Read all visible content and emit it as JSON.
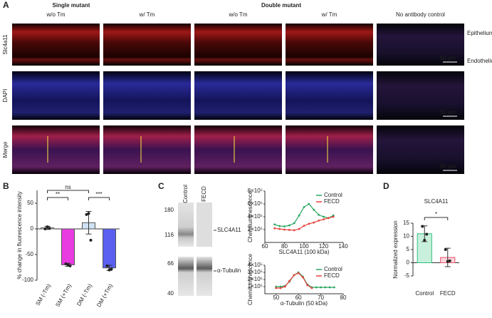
{
  "panel_a": {
    "label": "A",
    "groups": [
      "Single mutant",
      "Double mutant"
    ],
    "columns": [
      "w/o Tm",
      "w/ Tm",
      "w/o Tm",
      "w/ Tm",
      "No antibody control"
    ],
    "rows": [
      "Slc4a11",
      "DAPI",
      "Merge"
    ],
    "layers": [
      "Epithelium",
      "Endothelium"
    ],
    "scale_bar": "50 µm"
  },
  "panel_labels": [
    "B",
    "C",
    "D"
  ],
  "panel_c_blot": {
    "lanes": [
      "Control",
      "FECD"
    ],
    "markers": [
      "180",
      "116",
      "66",
      "40"
    ],
    "bands": [
      "SLC4A11",
      "α-Tubulin"
    ]
  },
  "chart_data": [
    {
      "type": "bar",
      "ylabel": "% change in fluorescence intensity",
      "categories": [
        "SM (-Tm)",
        "SM (+Tm)",
        "DM (-Tm)",
        "DM (+Tm)"
      ],
      "values": [
        2,
        -70,
        12,
        -76
      ],
      "errors": [
        3,
        3,
        22,
        5
      ],
      "points": [
        [
          0,
          4,
          1
        ],
        [
          -68,
          -70,
          -72
        ],
        [
          28,
          30,
          -22
        ],
        [
          -72,
          -80,
          -78
        ]
      ],
      "colors": [
        "#ffffff",
        "#e83ce0",
        "#cfe3f5",
        "#5a5ff0"
      ],
      "edge_colors": [
        "#555555",
        "#555555",
        "#555555",
        "#555555"
      ],
      "ylim": [
        -100,
        75
      ],
      "yticks": [
        -100,
        -50,
        0,
        50
      ],
      "annotations": [
        "**",
        "ns",
        "***"
      ]
    },
    {
      "type": "line",
      "ylabel": "Chemiluminescence",
      "xlabel": "SLC4A11 (100 kDa)",
      "x": [
        70,
        75,
        80,
        85,
        90,
        95,
        100,
        105,
        110,
        115,
        120,
        125,
        130
      ],
      "series": [
        {
          "name": "Control",
          "color": "#2aa661",
          "values": [
            280000,
            255000,
            250000,
            265000,
            300000,
            420000,
            550000,
            600000,
            510000,
            430000,
            400000,
            380000,
            420000
          ]
        },
        {
          "name": "FECD",
          "color": "#e8413c",
          "values": [
            220000,
            210000,
            200000,
            195000,
            190000,
            210000,
            260000,
            290000,
            310000,
            340000,
            360000,
            380000,
            400000
          ]
        }
      ],
      "xlim": [
        60,
        140
      ],
      "xticks": [
        60,
        80,
        100,
        120,
        140
      ],
      "ylim": [
        0,
        800000
      ],
      "yticks": [
        {
          "value": 200000,
          "label": "2×10⁵"
        },
        {
          "value": 400000,
          "label": "4×10⁵"
        },
        {
          "value": 600000,
          "label": "6×10⁵"
        },
        {
          "value": 800000,
          "label": "8×10⁵"
        }
      ],
      "legend": "upper right"
    },
    {
      "type": "line",
      "ylabel": "Chemiluminescence",
      "xlabel": "α-Tubulin (50 kDa)",
      "x": [
        50,
        52,
        54,
        56,
        58,
        60,
        62,
        64,
        66,
        68,
        70,
        72,
        74,
        76
      ],
      "series": [
        {
          "name": "Control",
          "color": "#2aa661",
          "values": [
            100000,
            100000,
            110000,
            170000,
            260000,
            300000,
            240000,
            130000,
            90000,
            90000,
            90000,
            90000,
            90000,
            90000
          ]
        },
        {
          "name": "FECD",
          "color": "#e8413c",
          "values": [
            80000,
            80000,
            100000,
            180000,
            260000,
            290000,
            230000,
            120000,
            80000,
            null,
            null,
            null,
            null,
            null
          ]
        }
      ],
      "xlim": [
        45,
        80
      ],
      "xticks": [
        50,
        60,
        70,
        80
      ],
      "ylim": [
        0,
        400000
      ],
      "yticks": [
        {
          "value": 100000,
          "label": "1×10⁵"
        },
        {
          "value": 200000,
          "label": "2×10⁵"
        },
        {
          "value": 300000,
          "label": "3×10⁵"
        },
        {
          "value": 400000,
          "label": "4×10⁵"
        }
      ],
      "legend": "upper right"
    },
    {
      "type": "bar",
      "title": "SLC4A11",
      "ylabel": "Normalized expression",
      "categories": [
        "Control",
        "FECD"
      ],
      "values": [
        11,
        2
      ],
      "errors": [
        3,
        3.5
      ],
      "points": [
        [
          13.8,
          8.5,
          10.8
        ],
        [
          5,
          0.5,
          0.7
        ]
      ],
      "colors": [
        "#c8f0dc",
        "#fbd5dc"
      ],
      "edge_colors": [
        "#2fbf7a",
        "#e8536b"
      ],
      "ylim": [
        -5,
        15
      ],
      "yticks": [
        -5,
        0,
        5,
        10,
        15
      ],
      "annotations": [
        "*"
      ]
    }
  ]
}
